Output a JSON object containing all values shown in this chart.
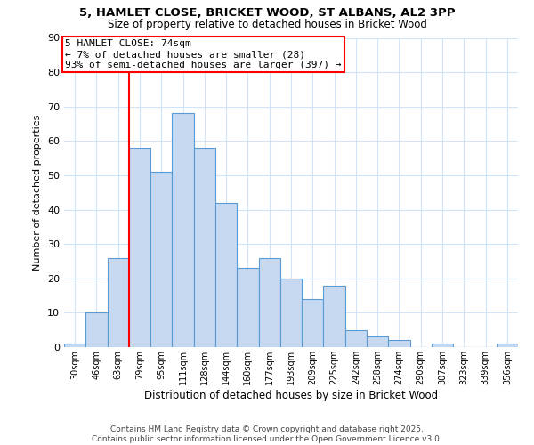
{
  "title1": "5, HAMLET CLOSE, BRICKET WOOD, ST ALBANS, AL2 3PP",
  "title2": "Size of property relative to detached houses in Bricket Wood",
  "xlabel": "Distribution of detached houses by size in Bricket Wood",
  "ylabel": "Number of detached properties",
  "bin_labels": [
    "30sqm",
    "46sqm",
    "63sqm",
    "79sqm",
    "95sqm",
    "111sqm",
    "128sqm",
    "144sqm",
    "160sqm",
    "177sqm",
    "193sqm",
    "209sqm",
    "225sqm",
    "242sqm",
    "258sqm",
    "274sqm",
    "290sqm",
    "307sqm",
    "323sqm",
    "339sqm",
    "356sqm"
  ],
  "bar_heights": [
    1,
    10,
    26,
    58,
    51,
    68,
    58,
    42,
    23,
    26,
    20,
    14,
    18,
    5,
    3,
    2,
    0,
    1,
    0,
    0,
    1
  ],
  "bar_color": "#c6d9f1",
  "bar_edge_color": "#5b9bd5",
  "property_line_color": "red",
  "annotation_title": "5 HAMLET CLOSE: 74sqm",
  "annotation_line1": "← 7% of detached houses are smaller (28)",
  "annotation_line2": "93% of semi-detached houses are larger (397) →",
  "annotation_box_color": "white",
  "annotation_box_edge_color": "red",
  "ylim": [
    0,
    90
  ],
  "yticks": [
    0,
    10,
    20,
    30,
    40,
    50,
    60,
    70,
    80,
    90
  ],
  "footer1": "Contains HM Land Registry data © Crown copyright and database right 2025.",
  "footer2": "Contains public sector information licensed under the Open Government Licence v3.0.",
  "background_color": "#ffffff",
  "grid_color": "#d0e4f7",
  "title1_fontsize": 9.5,
  "title2_fontsize": 8.5,
  "xlabel_fontsize": 8.5,
  "ylabel_fontsize": 8,
  "annotation_fontsize": 8,
  "tick_fontsize": 7,
  "footer_fontsize": 6.5
}
